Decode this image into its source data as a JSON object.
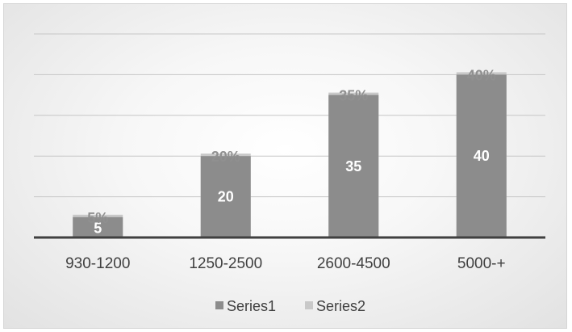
{
  "chart_data": {
    "type": "bar",
    "categories": [
      "930-1200",
      "1250-2500",
      "2600-4500",
      "5000-+"
    ],
    "series": [
      {
        "name": "Series1",
        "values": [
          5,
          20,
          35,
          40
        ],
        "labels": [
          "5",
          "20",
          "35",
          "40"
        ],
        "color": "#8c8c8c"
      },
      {
        "name": "Series2",
        "values": [
          5,
          20,
          35,
          40
        ],
        "labels": [
          "5%",
          "20%",
          "35%",
          "40%"
        ],
        "color": "#c8c8c8"
      }
    ],
    "ylim": [
      0,
      50
    ],
    "grid": true,
    "legend_position": "bottom",
    "axis_color": "#404040",
    "grid_color": "#c6c6c6"
  }
}
